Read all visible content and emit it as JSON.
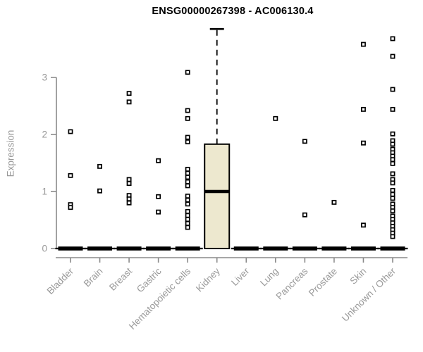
{
  "figure": {
    "title": "ENSG00000267398 - AC006130.4",
    "ylabel": "Expression"
  },
  "colors": {
    "background": "#FFFFFF",
    "box_fill": "#EDE8CF",
    "box_border": "#000000",
    "median": "#000000",
    "whisker": "#000000",
    "zero_bar": "#000000",
    "outlier": "#000000",
    "axis_line": "#8A8A8A",
    "axis_text": "#999999",
    "title_text": "#000000"
  },
  "chart_data": {
    "type": "boxplot",
    "title": "ENSG00000267398 - AC006130.4",
    "xlabel": "",
    "ylabel": "Expression",
    "yticks": [
      0,
      1,
      2,
      3
    ],
    "ylim": [
      0,
      3.9
    ],
    "grid": false,
    "legend": false,
    "categories": [
      "Bladder",
      "Brain",
      "Breast",
      "Gastric",
      "Hematopoietic cells",
      "Kidney",
      "Liver",
      "Lung",
      "Pancreas",
      "Prostate",
      "Skin",
      "Unknown / Other"
    ],
    "series": [
      {
        "name": "Bladder",
        "collapsed": true,
        "box": {
          "low": 0,
          "q1": 0,
          "median": 0,
          "q3": 0,
          "high": 0
        },
        "outliers": [
          2.05,
          1.28,
          0.77,
          0.72
        ]
      },
      {
        "name": "Brain",
        "collapsed": true,
        "box": {
          "low": 0,
          "q1": 0,
          "median": 0,
          "q3": 0,
          "high": 0
        },
        "outliers": [
          1.44,
          1.01
        ]
      },
      {
        "name": "Breast",
        "collapsed": true,
        "box": {
          "low": 0,
          "q1": 0,
          "median": 0,
          "q3": 0,
          "high": 0
        },
        "outliers": [
          2.72,
          2.57,
          1.21,
          1.14,
          0.93,
          0.87,
          0.8
        ]
      },
      {
        "name": "Gastric",
        "collapsed": true,
        "box": {
          "low": 0,
          "q1": 0,
          "median": 0,
          "q3": 0,
          "high": 0
        },
        "outliers": [
          1.54,
          0.91,
          0.64
        ]
      },
      {
        "name": "Hematopoietic cells",
        "collapsed": true,
        "box": {
          "low": 0,
          "q1": 0,
          "median": 0,
          "q3": 0,
          "high": 0
        },
        "outliers": [
          3.09,
          2.42,
          2.28,
          1.95,
          1.87,
          1.39,
          1.32,
          1.25,
          1.17,
          1.1,
          0.92,
          0.85,
          0.78,
          0.65,
          0.58,
          0.51,
          0.44,
          0.37
        ]
      },
      {
        "name": "Kidney",
        "collapsed": false,
        "box": {
          "low": 0,
          "q1": 0,
          "median": 1.0,
          "q3": 1.83,
          "high": 3.85
        },
        "outliers": []
      },
      {
        "name": "Liver",
        "collapsed": true,
        "box": {
          "low": 0,
          "q1": 0,
          "median": 0,
          "q3": 0,
          "high": 0
        },
        "outliers": []
      },
      {
        "name": "Lung",
        "collapsed": true,
        "box": {
          "low": 0,
          "q1": 0,
          "median": 0,
          "q3": 0,
          "high": 0
        },
        "outliers": [
          2.28
        ]
      },
      {
        "name": "Pancreas",
        "collapsed": true,
        "box": {
          "low": 0,
          "q1": 0,
          "median": 0,
          "q3": 0,
          "high": 0
        },
        "outliers": [
          1.88,
          0.59
        ]
      },
      {
        "name": "Prostate",
        "collapsed": true,
        "box": {
          "low": 0,
          "q1": 0,
          "median": 0,
          "q3": 0,
          "high": 0
        },
        "outliers": [
          0.81
        ]
      },
      {
        "name": "Skin",
        "collapsed": true,
        "box": {
          "low": 0,
          "q1": 0,
          "median": 0,
          "q3": 0,
          "high": 0
        },
        "outliers": [
          3.58,
          2.44,
          1.85,
          0.41
        ]
      },
      {
        "name": "Unknown / Other",
        "collapsed": true,
        "box": {
          "low": 0,
          "q1": 0,
          "median": 0,
          "q3": 0,
          "high": 0
        },
        "outliers": [
          3.68,
          3.37,
          2.79,
          2.44,
          2.01,
          1.89,
          1.83,
          1.74,
          1.68,
          1.62,
          1.56,
          1.49,
          1.31,
          1.21,
          1.15,
          1.02,
          0.95,
          0.88,
          0.78,
          0.72,
          0.66,
          0.57,
          0.51,
          0.45,
          0.39,
          0.33,
          0.27,
          0.21
        ]
      }
    ]
  }
}
